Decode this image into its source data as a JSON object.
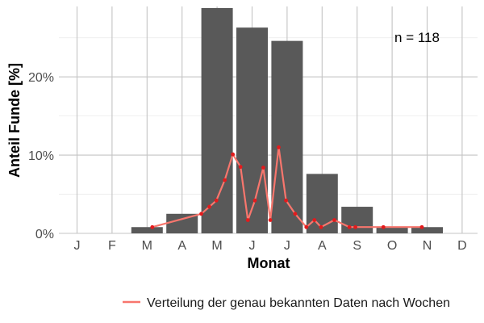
{
  "chart_data": {
    "type": "bar",
    "xlabel": "Monat",
    "ylabel": "Anteil Funde [%]",
    "annotation": "n = 118",
    "categories": [
      "J",
      "F",
      "M",
      "A",
      "M",
      "J",
      "J",
      "A",
      "S",
      "O",
      "N",
      "D"
    ],
    "values": [
      0,
      0,
      0.8,
      2.5,
      28.8,
      26.3,
      24.6,
      7.6,
      3.4,
      0.8,
      0.8,
      0
    ],
    "ylim": [
      0,
      29
    ],
    "yticks": [
      0,
      10,
      20
    ],
    "ytick_labels": [
      "0%",
      "10%",
      "20%"
    ],
    "grid": true,
    "bar_color": "#595959",
    "line_series": {
      "name": "Verteilung der genau bekannten Daten nach Wochen",
      "color": "#f8766d",
      "point_color": "#e41a1c",
      "points": [
        {
          "x": 2.15,
          "y": 0.8
        },
        {
          "x": 3.55,
          "y": 2.5
        },
        {
          "x": 3.78,
          "y": 3.4
        },
        {
          "x": 3.98,
          "y": 4.2
        },
        {
          "x": 4.22,
          "y": 6.8
        },
        {
          "x": 4.45,
          "y": 10.1
        },
        {
          "x": 4.67,
          "y": 8.5
        },
        {
          "x": 4.88,
          "y": 1.7
        },
        {
          "x": 5.08,
          "y": 4.2
        },
        {
          "x": 5.32,
          "y": 8.4
        },
        {
          "x": 5.52,
          "y": 1.7
        },
        {
          "x": 5.76,
          "y": 11.0
        },
        {
          "x": 5.97,
          "y": 4.2
        },
        {
          "x": 6.23,
          "y": 2.5
        },
        {
          "x": 6.55,
          "y": 0.8
        },
        {
          "x": 6.78,
          "y": 1.7
        },
        {
          "x": 6.97,
          "y": 0.8
        },
        {
          "x": 7.35,
          "y": 1.7
        },
        {
          "x": 7.78,
          "y": 0.8
        },
        {
          "x": 7.95,
          "y": 0.8
        },
        {
          "x": 8.75,
          "y": 0.8
        },
        {
          "x": 9.85,
          "y": 0.8
        }
      ]
    },
    "legend": "bottom"
  }
}
